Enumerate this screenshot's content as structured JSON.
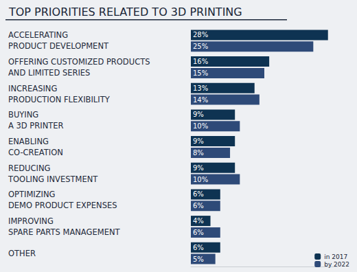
{
  "chart_data": {
    "type": "bar",
    "title": "TOP PRIORITIES RELATED TO 3D PRINTING",
    "orientation": "horizontal",
    "categories": [
      "ACCELERATING\nPRODUCT DEVELOPMENT",
      "OFFERING CUSTOMIZED PRODUCTS\nAND LIMITED SERIES",
      "INCREASING\nPRODUCTION FLEXIBILITY",
      "BUYING\nA 3D PRINTER",
      "ENABLING\nCO-CREATION",
      "REDUCING\nTOOLING INVESTMENT",
      "OPTIMIZING\nDEMO PRODUCT EXPENSES",
      "IMPROVING\nSPARE PARTS MANAGEMENT",
      "OTHER"
    ],
    "series": [
      {
        "name": "in 2017",
        "color": "#0e3352",
        "values": [
          28,
          16,
          13,
          9,
          9,
          9,
          6,
          4,
          6
        ],
        "value_labels": [
          "28%",
          "16%",
          "13%",
          "9%",
          "9%",
          "9%",
          "6%",
          "4%",
          "6%"
        ]
      },
      {
        "name": "by 2022",
        "color": "#2e4a78",
        "values": [
          25,
          15,
          14,
          10,
          8,
          10,
          6,
          6,
          5
        ],
        "value_labels": [
          "25%",
          "15%",
          "14%",
          "10%",
          "8%",
          "10%",
          "6%",
          "6%",
          "5%"
        ]
      }
    ],
    "xlim": [
      0,
      30
    ],
    "data_labels": true,
    "tick_labels": "y",
    "grid": false,
    "legend": "lower right"
  }
}
